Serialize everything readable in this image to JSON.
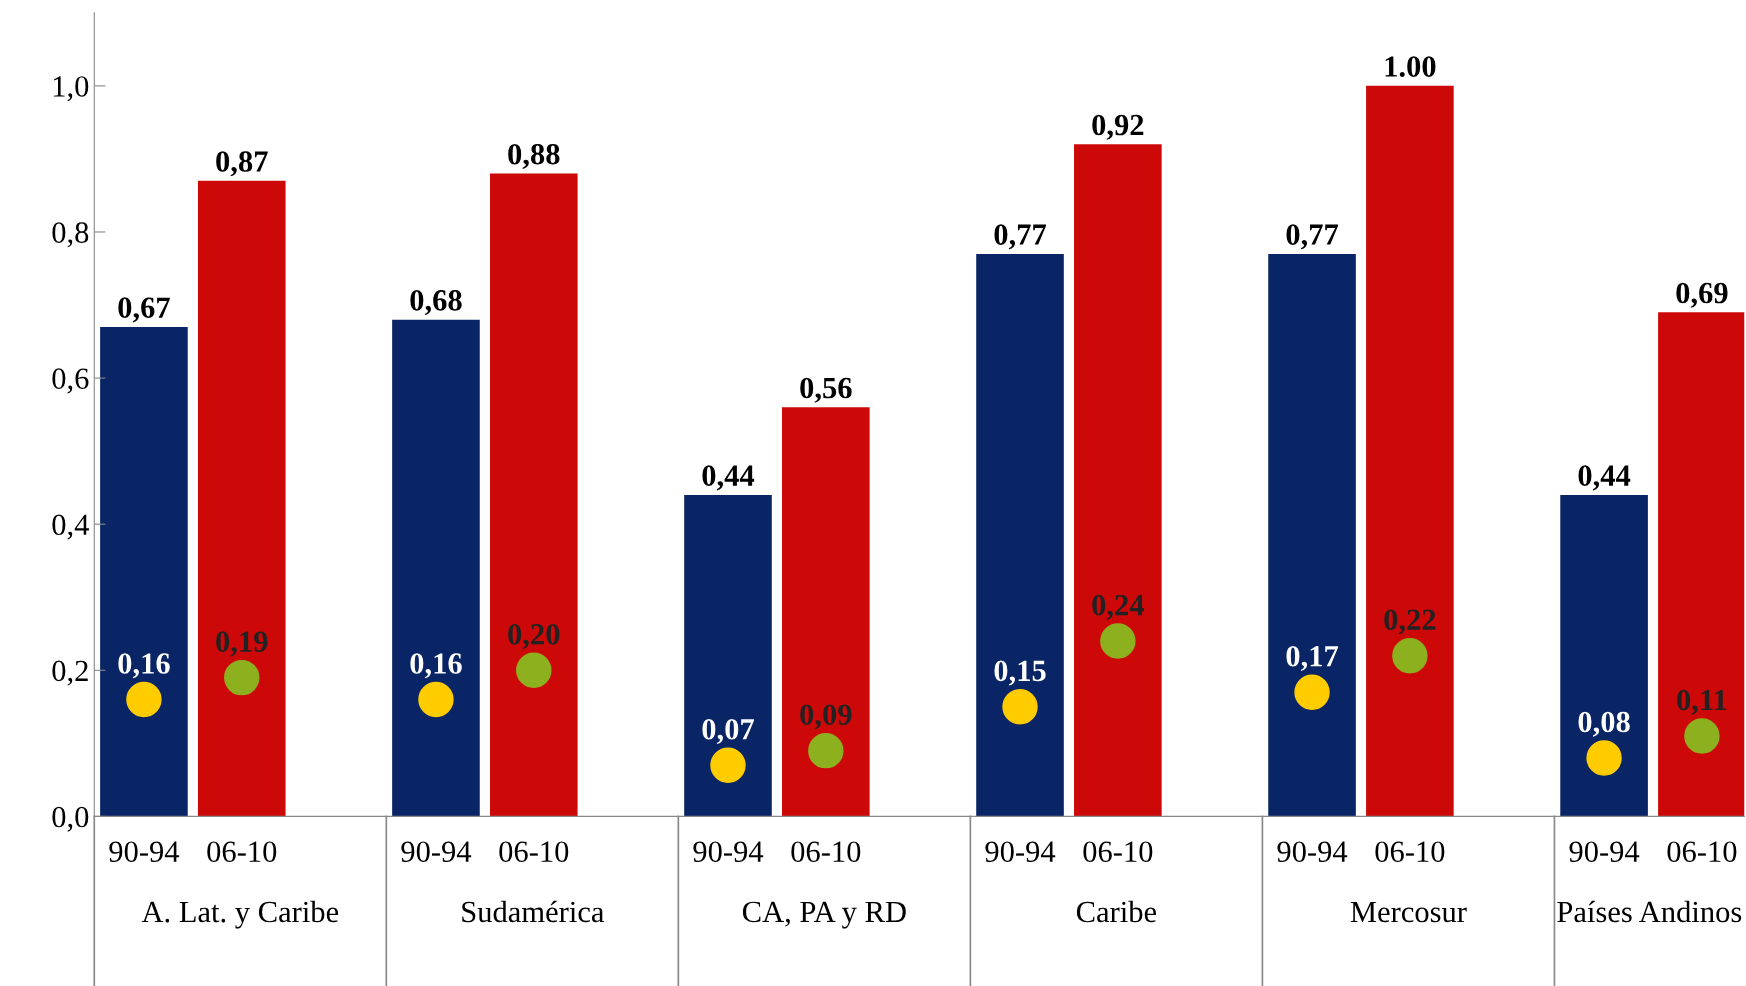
{
  "chart_data": {
    "type": "bar",
    "categories": [
      "A. Lat. y Caribe",
      "Sudamérica",
      "CA, PA y RD",
      "Caribe",
      "Mercosur",
      "Países Andinos"
    ],
    "series": [
      {
        "name": "90-94",
        "color": "#0a2566",
        "values": [
          0.67,
          0.68,
          0.44,
          0.77,
          0.77,
          0.44
        ],
        "value_labels": [
          "0,67",
          "0,68",
          "0,44",
          "0,77",
          "0,77",
          "0,44"
        ]
      },
      {
        "name": "06-10",
        "color": "#cc0808",
        "values": [
          0.87,
          0.88,
          0.56,
          0.92,
          1.0,
          0.69
        ],
        "value_labels": [
          "0,87",
          "0,88",
          "0,56",
          "0,92",
          "1.00",
          "0,69"
        ]
      },
      {
        "type": "scatter",
        "color": "#ffcc00",
        "values": [
          0.16,
          0.16,
          0.07,
          0.15,
          0.17,
          0.08
        ],
        "value_labels": [
          "0,16",
          "0,16",
          "0,07",
          "0,15",
          "0,17",
          "0,08"
        ]
      },
      {
        "type": "scatter",
        "color": "#8db01e",
        "values": [
          0.19,
          0.2,
          0.09,
          0.24,
          0.22,
          0.11
        ],
        "value_labels": [
          "0,19",
          "0,20",
          "0,09",
          "0,24",
          "0,22",
          "0,11"
        ]
      }
    ],
    "ylim": [
      0,
      1.1
    ],
    "yticks": [
      {
        "value": 0,
        "label": "0,0"
      },
      {
        "value": 0.2,
        "label": "0,2"
      },
      {
        "value": 0.4,
        "label": "0,4"
      },
      {
        "value": 0.6,
        "label": "0,6"
      },
      {
        "value": 0.8,
        "label": "0,8"
      },
      {
        "value": 1.0,
        "label": "1,0"
      }
    ],
    "grid": false,
    "legend": false
  }
}
